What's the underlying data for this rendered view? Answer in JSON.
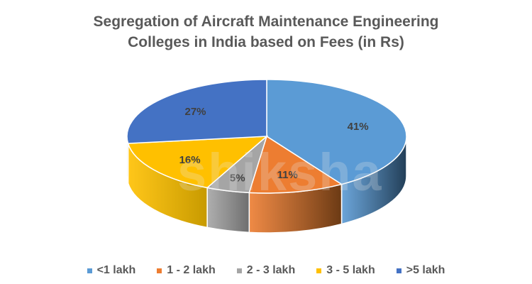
{
  "chart_data": {
    "type": "pie",
    "subtype": "3d-pie",
    "title": "Segregation of Aircraft Maintenance Engineering Colleges in India based on Fees (in Rs)",
    "title_lines": [
      "Segregation of Aircraft Maintenance Engineering",
      "Colleges in India based on Fees (in Rs)"
    ],
    "categories": [
      "<1 lakh",
      "1 - 2 lakh",
      "2 - 3 lakh",
      "3 - 5 lakh",
      ">5 lakh"
    ],
    "values": [
      41,
      11,
      5,
      16,
      27
    ],
    "labels": [
      "41%",
      "11%",
      "5%",
      "16%",
      "27%"
    ],
    "colors": [
      "#5B9BD5",
      "#ED7D31",
      "#A5A5A5",
      "#FFC000",
      "#4472C4"
    ],
    "side_colors": [
      "#223E57",
      "#6B3A14",
      "#6E6E6E",
      "#C79A00",
      "#2F528F"
    ],
    "legend_position": "bottom",
    "unit": "%"
  },
  "watermark": "shiksha"
}
